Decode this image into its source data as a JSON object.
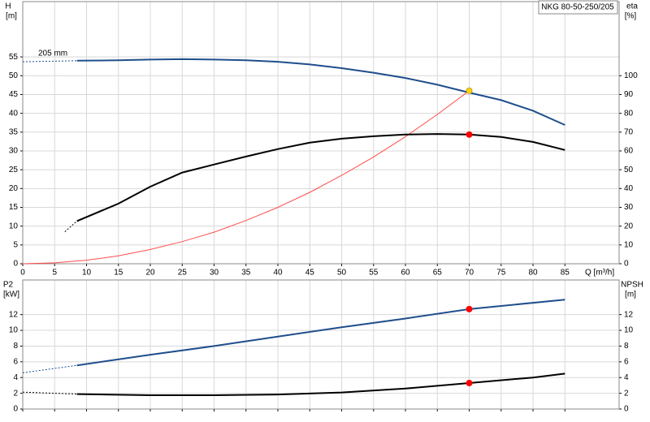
{
  "chart_data": [
    {
      "type": "line",
      "title": "NKG 80-50-250/205",
      "annotation": "205 mm",
      "ylabel": "H",
      "yunit": "[m]",
      "y2label": "eta",
      "y2unit": "[%]",
      "xlabel": "Q [m³/h]",
      "xlim": [
        0,
        93.5
      ],
      "xticks": [
        0,
        5,
        10,
        15,
        20,
        25,
        30,
        35,
        40,
        45,
        50,
        55,
        60,
        65,
        70,
        75,
        80,
        85
      ],
      "ylim": [
        0,
        69.7
      ],
      "yticks": [
        0,
        5,
        10,
        15,
        20,
        25,
        30,
        35,
        40,
        45,
        50,
        55
      ],
      "y2lim": [
        0,
        139.4
      ],
      "y2ticks": [
        0,
        10,
        20,
        30,
        40,
        50,
        60,
        70,
        80,
        90,
        100
      ],
      "grid": true,
      "series": [
        {
          "color": "#1f4e8c",
          "width": 2,
          "dash": true,
          "x": [
            0,
            8.5
          ],
          "values": [
            53.7,
            54
          ]
        },
        {
          "color": "#1f4e8c",
          "width": 2,
          "dash": false,
          "x": [
            8.5,
            15,
            20,
            25,
            30,
            35,
            40,
            45,
            50,
            55,
            60,
            65,
            70,
            75,
            80,
            85
          ],
          "values": [
            54,
            54.1,
            54.3,
            54.4,
            54.3,
            54.1,
            53.7,
            53,
            52,
            50.8,
            49.4,
            47.6,
            45.5,
            43.5,
            40.7,
            36.9
          ]
        },
        {
          "color": "#ff4d4d",
          "width": 1,
          "dash": false,
          "x": [
            0,
            5,
            10,
            15,
            20,
            25,
            30,
            35,
            40,
            45,
            50,
            55,
            60,
            65,
            70
          ],
          "values": [
            0,
            0.23,
            0.94,
            2.1,
            3.8,
            5.9,
            8.4,
            11.5,
            15,
            19,
            23.5,
            28.4,
            33.8,
            39.7,
            46
          ]
        },
        {
          "color": "#000000",
          "width": 2,
          "dash": true,
          "axis": "y2",
          "x": [
            6.6,
            8.5
          ],
          "values": [
            17,
            22.7
          ]
        },
        {
          "color": "#000000",
          "width": 2,
          "dash": false,
          "axis": "y2",
          "x": [
            8.5,
            15,
            20,
            25,
            30,
            35,
            40,
            45,
            50,
            55,
            60,
            65,
            70,
            75,
            80,
            85
          ],
          "values": [
            22.7,
            32,
            41,
            48.5,
            52.8,
            57,
            61,
            64.4,
            66.5,
            67.8,
            68.7,
            69,
            68.7,
            67.4,
            64.8,
            60.5
          ]
        }
      ],
      "markers": [
        {
          "color": "#ffd21f",
          "x": 70,
          "y": 46
        },
        {
          "color": "#ff0000",
          "axis": "y2",
          "x": 70,
          "y": 68.7
        }
      ]
    },
    {
      "type": "line",
      "ylabel": "P2",
      "yunit": "[kW]",
      "y2label": "NPSH",
      "y2unit": "[m]",
      "xlim": [
        0,
        93.5
      ],
      "xticks": [
        0,
        5,
        10,
        15,
        20,
        25,
        30,
        35,
        40,
        45,
        50,
        55,
        60,
        65,
        70,
        75,
        80,
        85
      ],
      "ylim": [
        0,
        16.4
      ],
      "yticks": [
        0,
        2,
        4,
        6,
        8,
        10,
        12
      ],
      "y2lim": [
        0,
        16.4
      ],
      "y2ticks": [
        0,
        2,
        4,
        6,
        8,
        10,
        12
      ],
      "grid": true,
      "series": [
        {
          "color": "#1f4e8c",
          "width": 2,
          "dash": true,
          "x": [
            0,
            8.5
          ],
          "values": [
            4.6,
            5.55
          ]
        },
        {
          "color": "#1f4e8c",
          "width": 2,
          "dash": false,
          "x": [
            8.5,
            20,
            30,
            40,
            50,
            60,
            70,
            85
          ],
          "values": [
            5.55,
            6.9,
            8,
            9.2,
            10.4,
            11.5,
            12.7,
            13.9
          ]
        },
        {
          "color": "#000000",
          "width": 2,
          "dash": true,
          "axis": "y2",
          "x": [
            0,
            8.5
          ],
          "values": [
            2.15,
            1.9
          ]
        },
        {
          "color": "#000000",
          "width": 2,
          "dash": false,
          "axis": "y2",
          "x": [
            8.5,
            20,
            30,
            40,
            50,
            60,
            70,
            80,
            85
          ],
          "values": [
            1.9,
            1.75,
            1.75,
            1.85,
            2.1,
            2.6,
            3.3,
            4,
            4.5
          ]
        }
      ],
      "markers": [
        {
          "color": "#ff0000",
          "x": 70,
          "y": 12.7
        },
        {
          "color": "#ff0000",
          "axis": "y2",
          "x": 70,
          "y": 3.3
        }
      ]
    }
  ]
}
